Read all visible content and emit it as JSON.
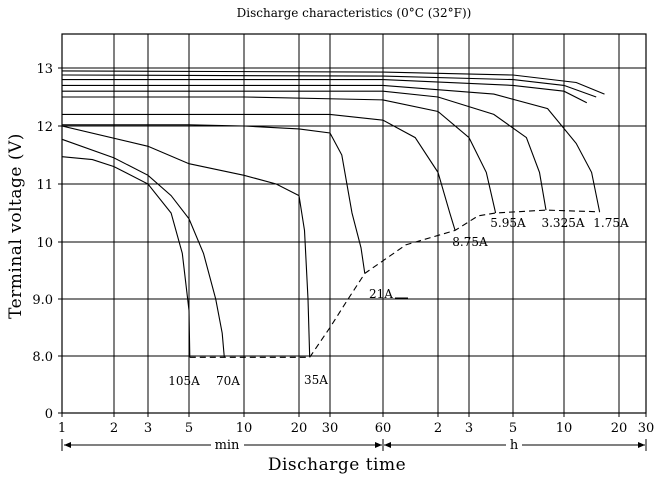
{
  "chart_data": {
    "type": "line",
    "title": "Discharge characteristics (0°C (32°F))",
    "xlabel": "Discharge time",
    "ylabel": "Terminal  voltage (V)",
    "x_scale": "log (time)",
    "x_unit_min": "min",
    "x_unit_h": "h",
    "x_ticks": [
      {
        "label": "1",
        "minutes": 1
      },
      {
        "label": "2",
        "minutes": 2
      },
      {
        "label": "3",
        "minutes": 3
      },
      {
        "label": "5",
        "minutes": 5
      },
      {
        "label": "10",
        "minutes": 10
      },
      {
        "label": "20",
        "minutes": 20
      },
      {
        "label": "30",
        "minutes": 30
      },
      {
        "label": "60",
        "minutes": 60
      },
      {
        "label": "2",
        "minutes": 120
      },
      {
        "label": "3",
        "minutes": 180
      },
      {
        "label": "5",
        "minutes": 300
      },
      {
        "label": "10",
        "minutes": 600
      },
      {
        "label": "20",
        "minutes": 1200
      },
      {
        "label": "30",
        "minutes": 1800
      }
    ],
    "y_ticks": [
      "0",
      "8.0",
      "9.0",
      "10",
      "11",
      "12",
      "13"
    ],
    "grid": true,
    "series": [
      {
        "name": "105A",
        "points": [
          [
            1,
            11.47
          ],
          [
            1.5,
            11.42
          ],
          [
            2,
            11.3
          ],
          [
            3,
            11.0
          ],
          [
            4,
            10.5
          ],
          [
            4.6,
            9.8
          ],
          [
            5,
            8.8
          ],
          [
            5.05,
            7.82
          ]
        ]
      },
      {
        "name": "70A",
        "points": [
          [
            1,
            11.77
          ],
          [
            2,
            11.45
          ],
          [
            3,
            11.15
          ],
          [
            4,
            10.8
          ],
          [
            5,
            10.4
          ],
          [
            6,
            9.8
          ],
          [
            7,
            9.0
          ],
          [
            7.6,
            8.4
          ],
          [
            7.8,
            7.82
          ]
        ]
      },
      {
        "name": "35A",
        "points": [
          [
            1,
            12.0
          ],
          [
            3,
            11.65
          ],
          [
            5,
            11.35
          ],
          [
            10,
            11.15
          ],
          [
            15,
            11.0
          ],
          [
            20,
            10.8
          ],
          [
            21.5,
            10.2
          ],
          [
            22.5,
            9.0
          ],
          [
            23,
            7.82
          ]
        ]
      },
      {
        "name": "21A",
        "points": [
          [
            1,
            12.02
          ],
          [
            5,
            12.02
          ],
          [
            10,
            12.0
          ],
          [
            20,
            11.95
          ],
          [
            30,
            11.88
          ],
          [
            35,
            11.5
          ],
          [
            40,
            10.5
          ],
          [
            45,
            9.9
          ],
          [
            47.3,
            9.45
          ]
        ]
      },
      {
        "name": "8.75A",
        "points": [
          [
            1,
            12.2
          ],
          [
            10,
            12.2
          ],
          [
            30,
            12.2
          ],
          [
            60,
            12.1
          ],
          [
            90,
            11.8
          ],
          [
            120,
            11.2
          ],
          [
            140,
            10.5
          ],
          [
            150,
            10.2
          ]
        ]
      },
      {
        "name": "5.95A",
        "points": [
          [
            1,
            12.5
          ],
          [
            10,
            12.5
          ],
          [
            60,
            12.45
          ],
          [
            120,
            12.25
          ],
          [
            180,
            11.8
          ],
          [
            220,
            11.2
          ],
          [
            245,
            10.5
          ]
        ]
      },
      {
        "name": "3.325A",
        "points": [
          [
            1,
            12.6
          ],
          [
            60,
            12.6
          ],
          [
            120,
            12.5
          ],
          [
            240,
            12.2
          ],
          [
            360,
            11.8
          ],
          [
            430,
            11.2
          ],
          [
            470,
            10.55
          ]
        ]
      },
      {
        "name": "1.75A",
        "points": [
          [
            1,
            12.7
          ],
          [
            60,
            12.7
          ],
          [
            240,
            12.55
          ],
          [
            480,
            12.3
          ],
          [
            700,
            11.7
          ],
          [
            850,
            11.2
          ],
          [
            940,
            10.52
          ]
        ]
      },
      {
        "name": "",
        "points": [
          [
            1,
            12.8
          ],
          [
            60,
            12.8
          ],
          [
            300,
            12.7
          ],
          [
            600,
            12.6
          ],
          [
            800,
            12.4
          ]
        ]
      },
      {
        "name": "",
        "points": [
          [
            1,
            12.88
          ],
          [
            60,
            12.86
          ],
          [
            300,
            12.8
          ],
          [
            600,
            12.7
          ],
          [
            900,
            12.5
          ]
        ]
      },
      {
        "name": "",
        "points": [
          [
            1,
            12.95
          ],
          [
            60,
            12.93
          ],
          [
            300,
            12.88
          ],
          [
            700,
            12.75
          ],
          [
            1000,
            12.55
          ]
        ]
      }
    ],
    "cutoff_line": [
      [
        5.05,
        7.82
      ],
      [
        7.8,
        7.82
      ],
      [
        23,
        7.82
      ],
      [
        30,
        8.5
      ],
      [
        38,
        9.0
      ],
      [
        47.3,
        9.45
      ],
      [
        80,
        9.95
      ],
      [
        150,
        10.2
      ],
      [
        200,
        10.45
      ],
      [
        245,
        10.5
      ],
      [
        470,
        10.55
      ],
      [
        940,
        10.52
      ]
    ]
  }
}
